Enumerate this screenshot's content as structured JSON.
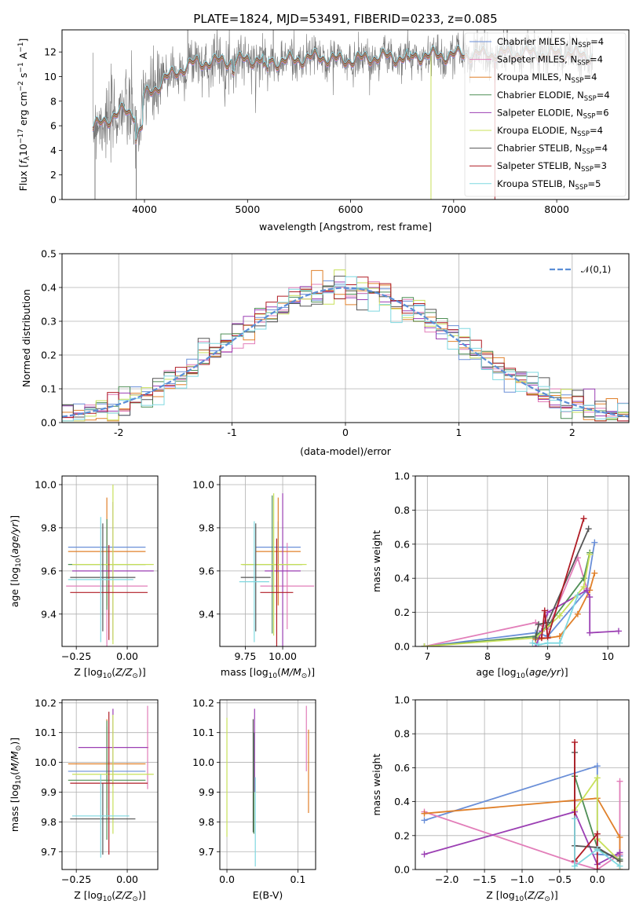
{
  "title": "PLATE=1824, MJD=53491, FIBERID=0233, z=0.085",
  "colors": {
    "Chabrier MILES": "#6a8fd8",
    "Salpeter MILES": "#e27eb9",
    "Kroupa MILES": "#e0802a",
    "Chabrier ELODIE": "#4f8f56",
    "Salpeter ELODIE": "#9b3fb3",
    "Kroupa ELODIE": "#c8e05a",
    "Chabrier STELIB": "#555555",
    "Salpeter STELIB": "#b01c25",
    "Kroupa STELIB": "#7fd8e0",
    "data": "#777777"
  },
  "chart_data": [
    {
      "id": "spectrum",
      "type": "line",
      "title": "PLATE=1824, MJD=53491, FIBERID=0233, z=0.085",
      "xlabel": "wavelength [Angstrom, rest frame]",
      "ylabel": "Flux [f_λ 10^-17 erg cm^-2 s^-1 A^-1]",
      "xlim": [
        3200,
        8700
      ],
      "ylim": [
        0,
        13.8
      ],
      "xticks": [
        4000,
        5000,
        6000,
        7000,
        8000
      ],
      "yticks": [
        0,
        2,
        4,
        6,
        8,
        10,
        12
      ],
      "grid": false,
      "legend_position": "top-right",
      "legend": [
        {
          "name": "Chabrier MILES",
          "nssp": "4"
        },
        {
          "name": "Salpeter MILES",
          "nssp": "4"
        },
        {
          "name": "Kroupa MILES",
          "nssp": "4"
        },
        {
          "name": "Chabrier ELODIE",
          "nssp": "4"
        },
        {
          "name": "Salpeter ELODIE",
          "nssp": "6"
        },
        {
          "name": "Kroupa ELODIE",
          "nssp": "4"
        },
        {
          "name": "Chabrier STELIB",
          "nssp": "4"
        },
        {
          "name": "Salpeter STELIB",
          "nssp": "3"
        },
        {
          "name": "Kroupa STELIB",
          "nssp": "5"
        }
      ],
      "continuum": {
        "x": [
          3500,
          3600,
          3700,
          3800,
          3900,
          4000,
          4100,
          4200,
          4300,
          4400,
          4500,
          4700,
          4900,
          5100,
          5300,
          5500,
          5700,
          5900,
          6100,
          6300,
          6500,
          6700,
          6900,
          7100,
          7300,
          7500,
          7700,
          7900,
          8100,
          8300
        ],
        "y": [
          5.8,
          6.3,
          6.8,
          7.2,
          7.0,
          8.4,
          9.0,
          9.8,
          10.3,
          10.8,
          11.1,
          11.2,
          11.3,
          11.4,
          11.2,
          11.4,
          11.6,
          11.3,
          11.4,
          11.6,
          11.5,
          11.7,
          11.7,
          11.8,
          11.8,
          11.9,
          11.9,
          11.8,
          11.9,
          11.7
        ]
      }
    },
    {
      "id": "residuals",
      "type": "histogram",
      "xlabel": "(data-model)/error",
      "ylabel": "Normed distribution",
      "xlim": [
        -2.5,
        2.5
      ],
      "ylim": [
        0,
        0.5
      ],
      "xticks": [
        -2,
        -1,
        0,
        1,
        2
      ],
      "yticks": [
        0.0,
        0.1,
        0.2,
        0.3,
        0.4,
        0.5
      ],
      "grid": true,
      "legend_position": "top-right",
      "legend": [
        "𝒩(0,1)"
      ],
      "bin_width": 0.1,
      "reference_curve": "normal pdf, mean 0, std 1"
    },
    {
      "id": "age-vs-Z",
      "type": "errorbar",
      "xlabel": "Z [log10(Z/Z⊙)]",
      "ylabel": "age [log10(age/yr)]",
      "xlim": [
        -0.32,
        0.15
      ],
      "ylim": [
        9.25,
        10.04
      ],
      "xticks": [
        -0.25,
        0.0
      ],
      "xtick_labels": [
        "−0.25",
        "0.00"
      ],
      "yticks": [
        9.4,
        9.6,
        9.8,
        10.0
      ],
      "grid": true,
      "points": [
        {
          "series": "Chabrier MILES",
          "x": -0.1,
          "y": 9.71,
          "xerr": 0.19,
          "yerr": 0.13
        },
        {
          "series": "Salpeter MILES",
          "x": -0.1,
          "y": 9.53,
          "xerr": 0.2,
          "yerr": 0.28
        },
        {
          "series": "Kroupa MILES",
          "x": -0.1,
          "y": 9.69,
          "xerr": 0.19,
          "yerr": 0.25
        },
        {
          "series": "Chabrier ELODIE",
          "x": -0.1,
          "y": 9.63,
          "xerr": 0.19,
          "yerr": 0.21
        },
        {
          "series": "Salpeter ELODIE",
          "x": -0.07,
          "y": 9.6,
          "xerr": 0.2,
          "yerr": 0.32
        },
        {
          "series": "Kroupa ELODIE",
          "x": -0.07,
          "y": 9.63,
          "xerr": 0.2,
          "yerr": 0.37
        },
        {
          "series": "Chabrier STELIB",
          "x": -0.12,
          "y": 9.57,
          "xerr": 0.16,
          "yerr": 0.25
        },
        {
          "series": "Salpeter STELIB",
          "x": -0.09,
          "y": 9.5,
          "xerr": 0.19,
          "yerr": 0.22
        },
        {
          "series": "Kroupa STELIB",
          "x": -0.13,
          "y": 9.56,
          "xerr": 0.16,
          "yerr": 0.29
        }
      ]
    },
    {
      "id": "age-vs-mass",
      "type": "errorbar",
      "xlabel": "mass [log10(M/M⊙)]",
      "xlim": [
        9.58,
        10.22
      ],
      "ylim": [
        9.25,
        10.04
      ],
      "xticks": [
        9.75,
        10.0
      ],
      "xtick_labels": [
        "9.75",
        "10.00"
      ],
      "yticks": [
        9.4,
        9.6,
        9.8,
        10.0
      ],
      "grid": true,
      "points": [
        {
          "series": "Chabrier MILES",
          "x": 9.97,
          "y": 9.71,
          "xerr": 0.15,
          "yerr": 0.12
        },
        {
          "series": "Salpeter MILES",
          "x": 10.03,
          "y": 9.53,
          "xerr": 0.18,
          "yerr": 0.2
        },
        {
          "series": "Kroupa MILES",
          "x": 9.97,
          "y": 9.69,
          "xerr": 0.15,
          "yerr": 0.25
        },
        {
          "series": "Chabrier ELODIE",
          "x": 9.93,
          "y": 9.63,
          "xerr": 0.2,
          "yerr": 0.32
        },
        {
          "series": "Salpeter ELODIE",
          "x": 10.0,
          "y": 9.6,
          "xerr": 0.12,
          "yerr": 0.36
        },
        {
          "series": "Kroupa ELODIE",
          "x": 9.94,
          "y": 9.63,
          "xerr": 0.22,
          "yerr": 0.33
        },
        {
          "series": "Chabrier STELIB",
          "x": 9.82,
          "y": 9.57,
          "xerr": 0.1,
          "yerr": 0.25
        },
        {
          "series": "Salpeter STELIB",
          "x": 9.96,
          "y": 9.5,
          "xerr": 0.11,
          "yerr": 0.25
        },
        {
          "series": "Kroupa STELIB",
          "x": 9.81,
          "y": 9.55,
          "xerr": 0.1,
          "yerr": 0.28
        }
      ]
    },
    {
      "id": "massweight-vs-age",
      "type": "line",
      "xlabel": "age [log10(age/yr)]",
      "ylabel": "mass weight",
      "xlim": [
        6.8,
        10.35
      ],
      "ylim": [
        0,
        1
      ],
      "xticks": [
        7,
        8,
        9,
        10
      ],
      "yticks": [
        0.0,
        0.2,
        0.4,
        0.6,
        0.8,
        1.0
      ],
      "grid": true,
      "series": [
        {
          "name": "Chabrier MILES",
          "x": [
            6.95,
            8.8,
            9.0,
            9.65,
            9.78
          ],
          "y": [
            0.0,
            0.08,
            0.06,
            0.33,
            0.61
          ]
        },
        {
          "name": "Salpeter MILES",
          "x": [
            6.95,
            8.8,
            9.0,
            9.5,
            9.65
          ],
          "y": [
            0.0,
            0.14,
            0.1,
            0.52,
            0.34
          ]
        },
        {
          "name": "Kroupa MILES",
          "x": [
            8.8,
            9.2,
            9.5,
            9.7,
            9.78
          ],
          "y": [
            0.04,
            0.06,
            0.19,
            0.33,
            0.43
          ]
        },
        {
          "name": "Chabrier ELODIE",
          "x": [
            6.95,
            8.8,
            9.0,
            9.6,
            9.7
          ],
          "y": [
            0.0,
            0.06,
            0.12,
            0.4,
            0.55
          ]
        },
        {
          "name": "Salpeter ELODIE",
          "x": [
            8.8,
            8.9,
            9.0,
            9.65,
            9.7,
            9.7,
            10.18
          ],
          "y": [
            0.0,
            0.09,
            0.2,
            0.33,
            0.29,
            0.08,
            0.09
          ]
        },
        {
          "name": "Kroupa ELODIE",
          "x": [
            6.95,
            8.8,
            9.2,
            9.6,
            9.7
          ],
          "y": [
            0.0,
            0.05,
            0.18,
            0.35,
            0.54
          ]
        },
        {
          "name": "Chabrier STELIB",
          "x": [
            8.8,
            8.85,
            9.0,
            9.68
          ],
          "y": [
            0.05,
            0.13,
            0.14,
            0.69
          ]
        },
        {
          "name": "Salpeter STELIB",
          "x": [
            8.9,
            8.95,
            9.0,
            9.6
          ],
          "y": [
            0.05,
            0.21,
            0.05,
            0.75
          ]
        },
        {
          "name": "Kroupa STELIB",
          "x": [
            8.75,
            8.85,
            9.0,
            9.2,
            9.5
          ],
          "y": [
            0.02,
            0.01,
            0.02,
            0.02,
            0.3
          ]
        }
      ]
    },
    {
      "id": "mass-vs-Z",
      "type": "errorbar",
      "xlabel": "Z [log10(Z/Z⊙)]",
      "ylabel": "mass [log10(M/M⊙)]",
      "xlim": [
        -0.32,
        0.15
      ],
      "ylim": [
        9.64,
        10.21
      ],
      "xticks": [
        -0.25,
        0.0
      ],
      "xtick_labels": [
        "−0.25",
        "0.00"
      ],
      "yticks": [
        9.7,
        9.8,
        9.9,
        10.0,
        10.1,
        10.2
      ],
      "grid": true,
      "points": [
        {
          "series": "Chabrier MILES",
          "x": -0.1,
          "y": 9.97,
          "xerr": 0.19,
          "yerr": 0.15
        },
        {
          "series": "Salpeter MILES",
          "x": 0.1,
          "y": 10.05,
          "xerr": 0.005,
          "yerr": 0.14
        },
        {
          "series": "Kroupa MILES",
          "x": -0.1,
          "y": 9.995,
          "xerr": 0.19,
          "yerr": 0.15
        },
        {
          "series": "Chabrier ELODIE",
          "x": -0.1,
          "y": 9.94,
          "xerr": 0.19,
          "yerr": 0.2
        },
        {
          "series": "Salpeter ELODIE",
          "x": -0.07,
          "y": 10.05,
          "xerr": 0.17,
          "yerr": 0.13
        },
        {
          "series": "Kroupa ELODIE",
          "x": -0.07,
          "y": 9.96,
          "xerr": 0.2,
          "yerr": 0.2
        },
        {
          "series": "Chabrier STELIB",
          "x": -0.12,
          "y": 9.81,
          "xerr": 0.16,
          "yerr": 0.12
        },
        {
          "series": "Salpeter STELIB",
          "x": -0.09,
          "y": 9.93,
          "xerr": 0.19,
          "yerr": 0.24
        },
        {
          "series": "Kroupa STELIB",
          "x": -0.13,
          "y": 9.82,
          "xerr": 0.14,
          "yerr": 0.14
        }
      ]
    },
    {
      "id": "mass-vs-EBV",
      "type": "errorbar",
      "xlabel": "E(B-V)",
      "xlim": [
        -0.01,
        0.125
      ],
      "ylim": [
        9.64,
        10.21
      ],
      "xticks": [
        0.0,
        0.1
      ],
      "xtick_labels": [
        "0.0",
        "0.1"
      ],
      "yticks": [
        9.7,
        9.8,
        9.9,
        10.0,
        10.1,
        10.2
      ],
      "grid": true,
      "points": [
        {
          "series": "Kroupa ELODIE",
          "x": 0.0,
          "y": 9.95,
          "yerr": 0.2
        },
        {
          "series": "Chabrier STELIB",
          "x": 0.037,
          "y": 9.955,
          "yerr": 0.19
        },
        {
          "series": "Chabrier ELODIE",
          "x": 0.038,
          "y": 9.93,
          "yerr": 0.17
        },
        {
          "series": "Salpeter ELODIE",
          "x": 0.039,
          "y": 10.04,
          "yerr": 0.14
        },
        {
          "series": "Kroupa STELIB",
          "x": 0.04,
          "y": 9.8,
          "yerr": 0.15
        },
        {
          "series": "Salpeter MILES",
          "x": 0.112,
          "y": 10.08,
          "yerr": 0.11
        },
        {
          "series": "Kroupa MILES",
          "x": 0.115,
          "y": 9.97,
          "yerr": 0.14
        }
      ]
    },
    {
      "id": "massweight-vs-Z",
      "type": "line",
      "xlabel": "Z [log10(Z/Z⊙)]",
      "ylabel": "mass weight",
      "xlim": [
        -2.42,
        0.42
      ],
      "ylim": [
        0,
        1
      ],
      "xticks": [
        -2.0,
        -1.5,
        -1.0,
        -0.5,
        0.0
      ],
      "xtick_labels": [
        "−2.0",
        "−1.5",
        "−1.0",
        "−0.5",
        "0.0"
      ],
      "yticks": [
        0.0,
        0.2,
        0.4,
        0.6,
        0.8,
        1.0
      ],
      "grid": true,
      "series": [
        {
          "name": "Chabrier MILES",
          "x": [
            -2.3,
            0.0,
            0.0,
            0.3
          ],
          "y": [
            0.29,
            0.61,
            0.09,
            0.08
          ]
        },
        {
          "name": "Salpeter MILES",
          "x": [
            -2.3,
            -0.3,
            0.0,
            0.3,
            0.3
          ],
          "y": [
            0.34,
            0.04,
            0.0,
            0.09,
            0.52
          ]
        },
        {
          "name": "Kroupa MILES",
          "x": [
            -2.3,
            0.0,
            0.3,
            0.3
          ],
          "y": [
            0.33,
            0.42,
            0.19,
            0.0
          ]
        },
        {
          "name": "Chabrier ELODIE",
          "x": [
            -0.3,
            0.0,
            0.0,
            0.3
          ],
          "y": [
            0.55,
            0.13,
            0.12,
            0.06
          ]
        },
        {
          "name": "Salpeter ELODIE",
          "x": [
            -2.3,
            -0.3,
            0.0,
            0.3
          ],
          "y": [
            0.09,
            0.34,
            0.03,
            0.1
          ]
        },
        {
          "name": "Kroupa ELODIE",
          "x": [
            -0.3,
            0.0,
            0.0,
            0.3
          ],
          "y": [
            0.35,
            0.54,
            0.18,
            0.05
          ]
        },
        {
          "name": "Chabrier STELIB",
          "x": [
            -0.3,
            -0.3,
            0.0,
            0.3
          ],
          "y": [
            0.69,
            0.14,
            0.13,
            0.05
          ]
        },
        {
          "name": "Salpeter STELIB",
          "x": [
            -0.3,
            -0.3,
            0.0,
            0.0
          ],
          "y": [
            0.75,
            0.05,
            0.21,
            0.0
          ]
        },
        {
          "name": "Kroupa STELIB",
          "x": [
            -0.3,
            -0.3,
            0.0,
            0.3
          ],
          "y": [
            0.3,
            0.02,
            0.12,
            0.02
          ]
        }
      ]
    }
  ]
}
